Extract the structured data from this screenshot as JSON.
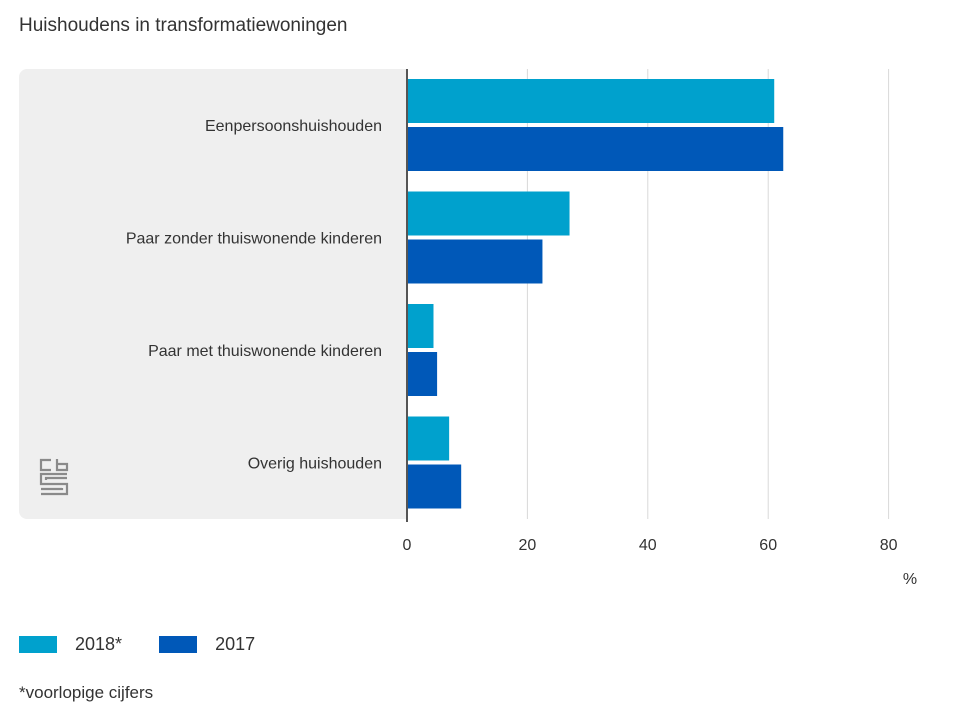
{
  "title": "Huishoudens in transformatiewoningen",
  "footnote": "*voorlopige cijfers",
  "chart_data": {
    "type": "bar",
    "orientation": "horizontal",
    "title": "Huishoudens in transformatiewoningen",
    "categories": [
      "Eenpersoonshuishouden",
      "Paar zonder thuiswonende kinderen",
      "Paar met thuiswonende kinderen",
      "Overig huishouden"
    ],
    "series": [
      {
        "name": "2018*",
        "color": "#00a1cd",
        "values": [
          61,
          27,
          4.4,
          7
        ]
      },
      {
        "name": "2017",
        "color": "#0058b8",
        "values": [
          62.5,
          22.5,
          5,
          9
        ]
      }
    ],
    "xlim": [
      0,
      85
    ],
    "xticks": [
      0,
      20,
      40,
      60,
      80
    ],
    "xlabel": "%",
    "ylabel": "",
    "grid": true,
    "legend_position": "bottom-left"
  }
}
